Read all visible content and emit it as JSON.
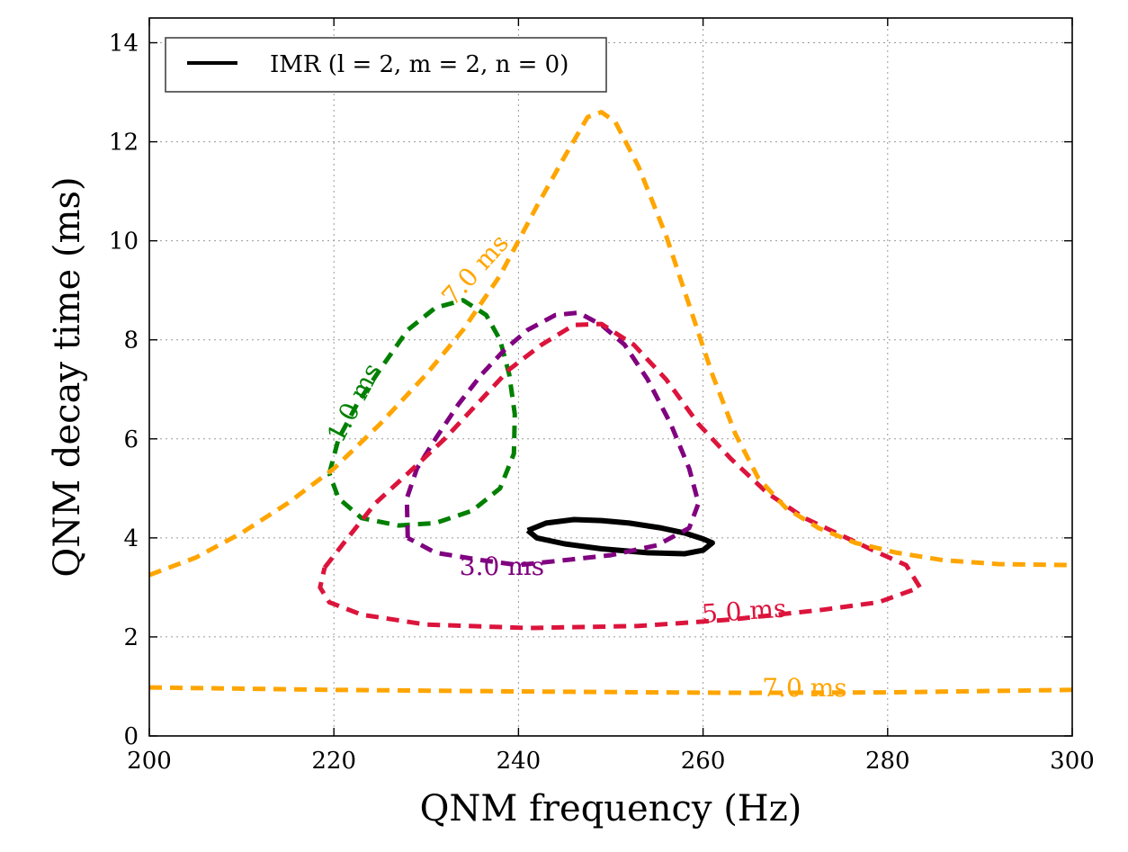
{
  "chart_data": {
    "type": "line",
    "xlabel": "QNM frequency (Hz)",
    "ylabel": "QNM decay time (ms)",
    "xlim": [
      200,
      300
    ],
    "ylim": [
      0,
      14.5
    ],
    "xticks": [
      200,
      220,
      240,
      260,
      280,
      300
    ],
    "yticks": [
      0,
      2,
      4,
      6,
      8,
      10,
      12,
      14
    ],
    "xtick_labels": [
      "200",
      "220",
      "240",
      "260",
      "280",
      "300"
    ],
    "ytick_labels": [
      "0",
      "2",
      "4",
      "6",
      "8",
      "10",
      "12",
      "14"
    ],
    "grid": true,
    "legend": {
      "position": "top-left",
      "entries": [
        {
          "label": "IMR (l = 2, m = 2, n = 0)",
          "color": "#000000",
          "style": "solid"
        }
      ]
    },
    "series": [
      {
        "name": "IMR (l = 2, m = 2, n = 0)",
        "color": "#000000",
        "style": "solid",
        "points": [
          [
            241.0,
            4.15
          ],
          [
            243.0,
            4.3
          ],
          [
            246.0,
            4.37
          ],
          [
            249.0,
            4.35
          ],
          [
            252.0,
            4.3
          ],
          [
            255.5,
            4.2
          ],
          [
            258.0,
            4.1
          ],
          [
            260.0,
            3.98
          ],
          [
            261.0,
            3.9
          ],
          [
            260.0,
            3.75
          ],
          [
            258.0,
            3.68
          ],
          [
            254.0,
            3.7
          ],
          [
            249.0,
            3.78
          ],
          [
            245.0,
            3.88
          ],
          [
            242.0,
            4.0
          ],
          [
            241.0,
            4.15
          ]
        ]
      },
      {
        "name": "1.0 ms",
        "color": "#008000",
        "style": "dashed",
        "points": [
          [
            219.5,
            5.3
          ],
          [
            220.5,
            6.0
          ],
          [
            222.5,
            6.7
          ],
          [
            225.0,
            7.4
          ],
          [
            228.0,
            8.2
          ],
          [
            231.0,
            8.65
          ],
          [
            234.0,
            8.8
          ],
          [
            236.5,
            8.5
          ],
          [
            238.0,
            8.0
          ],
          [
            239.0,
            7.3
          ],
          [
            239.6,
            6.5
          ],
          [
            239.5,
            5.7
          ],
          [
            238.0,
            5.0
          ],
          [
            235.0,
            4.55
          ],
          [
            231.0,
            4.3
          ],
          [
            227.0,
            4.25
          ],
          [
            223.0,
            4.4
          ],
          [
            220.5,
            4.8
          ],
          [
            219.5,
            5.3
          ]
        ]
      },
      {
        "name": "3.0 ms",
        "color": "#800080",
        "style": "dashed",
        "points": [
          [
            228.0,
            4.0
          ],
          [
            227.9,
            4.8
          ],
          [
            229.0,
            5.4
          ],
          [
            231.0,
            6.0
          ],
          [
            233.5,
            6.7
          ],
          [
            236.0,
            7.3
          ],
          [
            238.5,
            7.8
          ],
          [
            241.0,
            8.2
          ],
          [
            244.0,
            8.5
          ],
          [
            246.5,
            8.55
          ],
          [
            249.0,
            8.3
          ],
          [
            251.5,
            7.9
          ],
          [
            254.0,
            7.2
          ],
          [
            256.5,
            6.3
          ],
          [
            258.5,
            5.4
          ],
          [
            259.5,
            4.7
          ],
          [
            258.5,
            4.2
          ],
          [
            255.0,
            3.85
          ],
          [
            250.0,
            3.65
          ],
          [
            245.0,
            3.55
          ],
          [
            240.0,
            3.45
          ],
          [
            236.0,
            3.55
          ],
          [
            231.0,
            3.7
          ],
          [
            228.0,
            4.0
          ]
        ]
      },
      {
        "name": "5.0 ms",
        "color": "#dc143c",
        "style": "dashed",
        "points": [
          [
            219.0,
            3.4
          ],
          [
            221.5,
            4.0
          ],
          [
            224.5,
            4.7
          ],
          [
            228.0,
            5.3
          ],
          [
            232.0,
            6.0
          ],
          [
            235.5,
            6.7
          ],
          [
            239.0,
            7.4
          ],
          [
            242.5,
            7.9
          ],
          [
            246.0,
            8.3
          ],
          [
            249.0,
            8.32
          ],
          [
            252.5,
            7.9
          ],
          [
            256.0,
            7.2
          ],
          [
            259.5,
            6.3
          ],
          [
            263.0,
            5.6
          ],
          [
            267.0,
            4.9
          ],
          [
            271.0,
            4.4
          ],
          [
            275.0,
            4.05
          ],
          [
            279.0,
            3.7
          ],
          [
            282.0,
            3.45
          ],
          [
            283.5,
            3.0
          ],
          [
            279.0,
            2.7
          ],
          [
            273.0,
            2.55
          ],
          [
            263.0,
            2.35
          ],
          [
            253.0,
            2.22
          ],
          [
            241.0,
            2.18
          ],
          [
            230.0,
            2.25
          ],
          [
            223.0,
            2.45
          ],
          [
            219.5,
            2.7
          ],
          [
            218.5,
            3.0
          ],
          [
            219.0,
            3.4
          ]
        ]
      },
      {
        "name": "7.0 ms",
        "color": "#ffa500",
        "style": "dashed",
        "points": [
          [
            200.0,
            3.25
          ],
          [
            205.0,
            3.6
          ],
          [
            210.0,
            4.1
          ],
          [
            215.0,
            4.7
          ],
          [
            220.0,
            5.4
          ],
          [
            225.0,
            6.3
          ],
          [
            230.0,
            7.3
          ],
          [
            234.0,
            8.2
          ],
          [
            238.0,
            9.3
          ],
          [
            242.0,
            10.7
          ],
          [
            245.0,
            11.7
          ],
          [
            247.5,
            12.5
          ],
          [
            249.0,
            12.6
          ],
          [
            250.5,
            12.4
          ],
          [
            253.0,
            11.5
          ],
          [
            256.0,
            10.1
          ],
          [
            258.5,
            8.7
          ],
          [
            261.0,
            7.3
          ],
          [
            263.5,
            6.1
          ],
          [
            266.0,
            5.2
          ],
          [
            269.0,
            4.6
          ],
          [
            272.5,
            4.2
          ],
          [
            276.5,
            3.9
          ],
          [
            281.0,
            3.7
          ],
          [
            286.0,
            3.55
          ],
          [
            292.0,
            3.47
          ],
          [
            300.0,
            3.45
          ]
        ]
      },
      {
        "name": "7.0 ms",
        "color": "#ffa500",
        "style": "dashed",
        "points": [
          [
            200.0,
            0.98
          ],
          [
            220.0,
            0.93
          ],
          [
            240.0,
            0.9
          ],
          [
            255.0,
            0.88
          ],
          [
            265.0,
            0.87
          ],
          [
            280.0,
            0.88
          ],
          [
            300.0,
            0.93
          ]
        ]
      }
    ],
    "annotations": [
      {
        "text": "1.0 ms",
        "x": 223.0,
        "y": 6.65,
        "rotation": -62,
        "color": "#008000"
      },
      {
        "text": "3.0 ms",
        "x": 238.2,
        "y": 3.25,
        "rotation": 0,
        "color": "#800080"
      },
      {
        "text": "5.0 ms",
        "x": 264.5,
        "y": 2.35,
        "rotation": -4,
        "color": "#dc143c"
      },
      {
        "text": "7.0 ms",
        "x": 236.0,
        "y": 9.3,
        "rotation": -48,
        "color": "#ffa500"
      },
      {
        "text": "7.0 ms",
        "x": 271.0,
        "y": 0.8,
        "rotation": 0,
        "color": "#ffa500"
      }
    ]
  }
}
